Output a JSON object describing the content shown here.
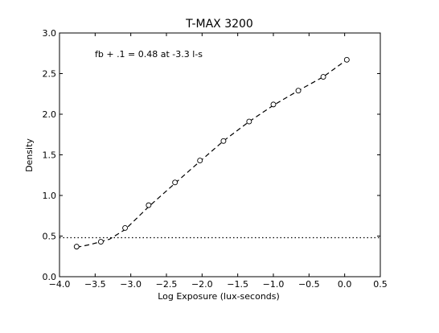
{
  "chart_data": {
    "type": "line",
    "title": "T-MAX 3200",
    "xlabel": "Log Exposure (lux-seconds)",
    "ylabel": "Density",
    "xlim": [
      -4.0,
      0.5
    ],
    "ylim": [
      0.0,
      3.0
    ],
    "x_ticks": [
      "−4.0",
      "−3.5",
      "−3.0",
      "−2.5",
      "−2.0",
      "−1.5",
      "−1.0",
      "−0.5",
      "0.0",
      "0.5"
    ],
    "y_ticks": [
      "0.0",
      "0.5",
      "1.0",
      "1.5",
      "2.0",
      "2.5",
      "3.0"
    ],
    "annotation": "fb + .1 = 0.48 at -3.3 l-s",
    "reference_line_y": 0.48,
    "grid": false,
    "series": [
      {
        "style": "dashed line with open circle markers",
        "points": [
          {
            "x": -3.76,
            "y": 0.37
          },
          {
            "x": -3.42,
            "y": 0.43
          },
          {
            "x": -3.08,
            "y": 0.6
          },
          {
            "x": -2.75,
            "y": 0.88
          },
          {
            "x": -2.38,
            "y": 1.16
          },
          {
            "x": -2.03,
            "y": 1.43
          },
          {
            "x": -1.7,
            "y": 1.67
          },
          {
            "x": -1.34,
            "y": 1.91
          },
          {
            "x": -1.0,
            "y": 2.12
          },
          {
            "x": -0.65,
            "y": 2.29
          },
          {
            "x": -0.3,
            "y": 2.46
          },
          {
            "x": 0.03,
            "y": 2.67
          }
        ],
        "fit_line": [
          {
            "x": -3.76,
            "y": 0.36
          },
          {
            "x": -3.55,
            "y": 0.4
          },
          {
            "x": -3.3,
            "y": 0.46
          },
          {
            "x": -3.08,
            "y": 0.58
          },
          {
            "x": -2.75,
            "y": 0.86
          },
          {
            "x": -2.38,
            "y": 1.15
          },
          {
            "x": -2.03,
            "y": 1.42
          },
          {
            "x": -1.7,
            "y": 1.67
          },
          {
            "x": -1.34,
            "y": 1.91
          },
          {
            "x": -1.0,
            "y": 2.11
          },
          {
            "x": -0.65,
            "y": 2.29
          },
          {
            "x": -0.3,
            "y": 2.46
          },
          {
            "x": 0.03,
            "y": 2.67
          }
        ]
      }
    ]
  }
}
